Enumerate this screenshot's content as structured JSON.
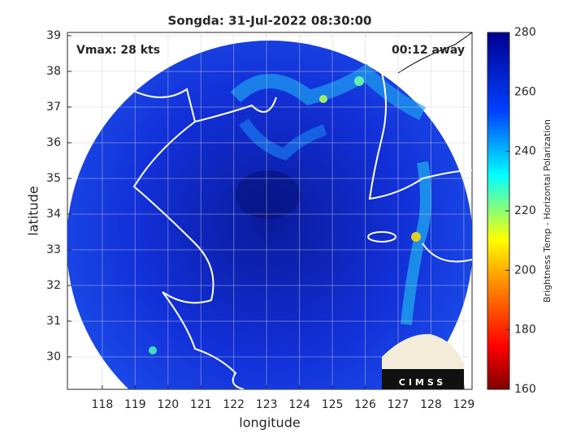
{
  "chart_data": {
    "type": "map",
    "title": "Songda: 31-Jul-2022 08:30:00",
    "annotations": [
      "Vmax: 28 kts",
      "00:12 away"
    ],
    "xlabel": "longitude",
    "ylabel": "latitude",
    "xlim": [
      116.94,
      129.25
    ],
    "ylim": [
      29.09,
      39.09
    ],
    "xticks": [
      118,
      119,
      120,
      121,
      122,
      123,
      124,
      125,
      126,
      127,
      128,
      129
    ],
    "yticks": [
      30,
      31,
      32,
      33,
      34,
      35,
      36,
      37,
      38,
      39
    ],
    "grid": true,
    "colorbar": {
      "label": "Brightness Temp - Horizontal Polarization",
      "lim": [
        160,
        280
      ],
      "ticks": [
        160,
        180,
        200,
        220,
        240,
        260,
        280
      ]
    },
    "logo": "CIMSS"
  }
}
